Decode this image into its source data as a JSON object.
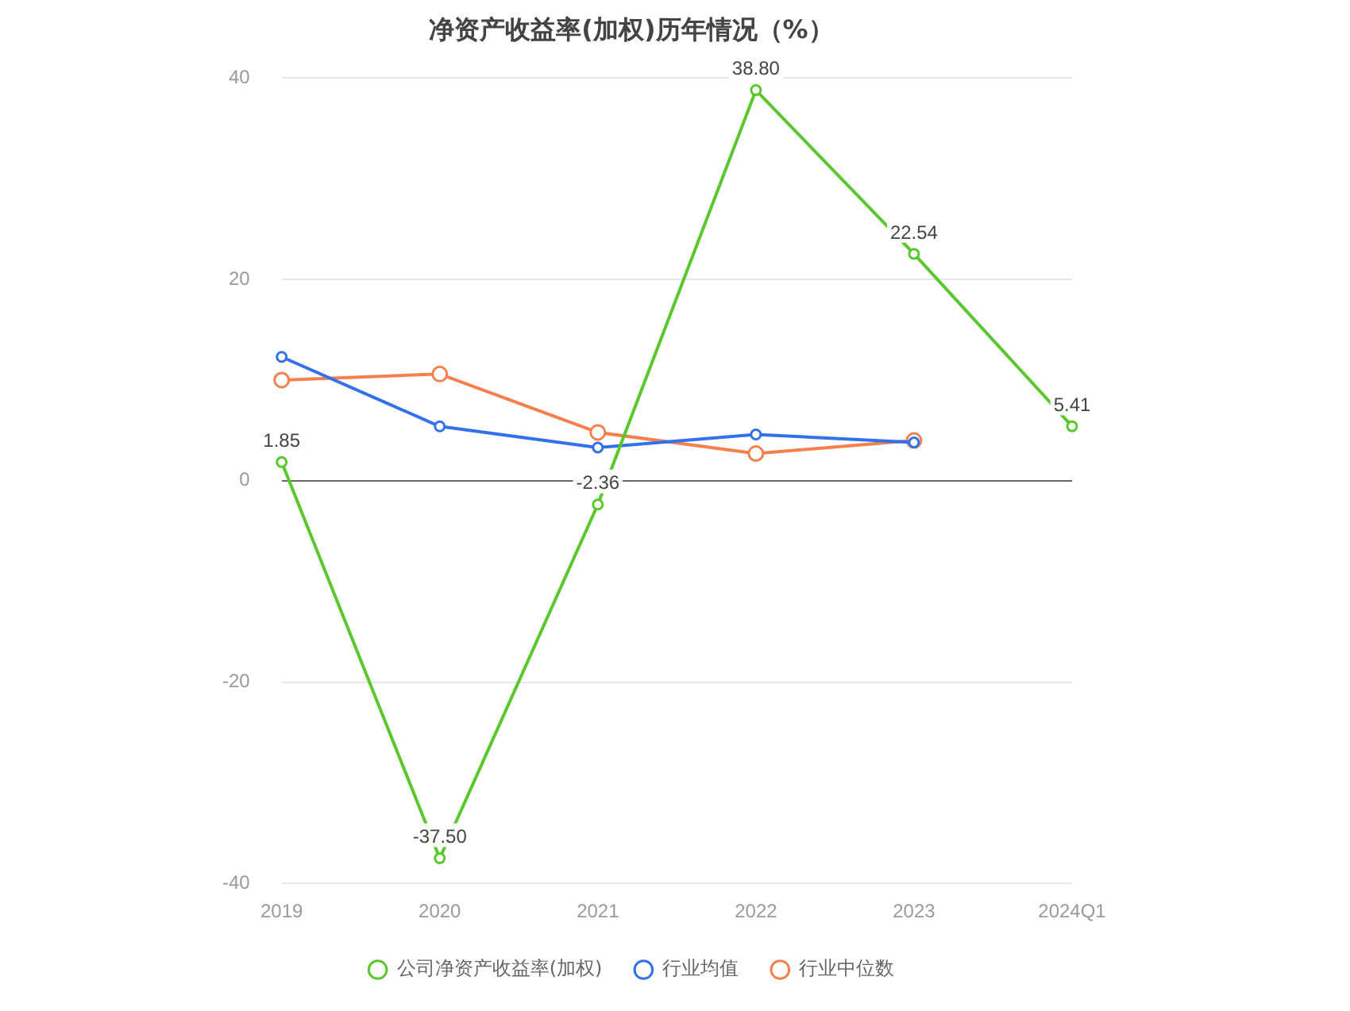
{
  "chart_data": {
    "type": "line",
    "title": "净资产收益率(加权)历年情况（%）",
    "categories": [
      "2019",
      "2020",
      "2021",
      "2022",
      "2023",
      "2024Q1"
    ],
    "series": [
      {
        "name": "公司净资产收益率(加权)",
        "color": "#5ac72e",
        "values": [
          1.85,
          -37.5,
          -2.36,
          38.8,
          22.54,
          5.41
        ],
        "value_labels": [
          "1.85",
          "-37.50",
          "-2.36",
          "38.80",
          "22.54",
          "5.41"
        ]
      },
      {
        "name": "行业均值",
        "color": "#3370eb",
        "values": [
          12.3,
          5.4,
          3.3,
          4.6,
          3.8,
          null
        ]
      },
      {
        "name": "行业中位数",
        "color": "#f5804d",
        "values": [
          10.0,
          10.6,
          4.8,
          2.7,
          4.0,
          null
        ]
      }
    ],
    "ylim": [
      -40,
      40
    ],
    "yticks": [
      -40,
      -20,
      0,
      20,
      40
    ],
    "grid": "y",
    "legend": "bottom",
    "marker": "circle",
    "line_style": "solid"
  }
}
